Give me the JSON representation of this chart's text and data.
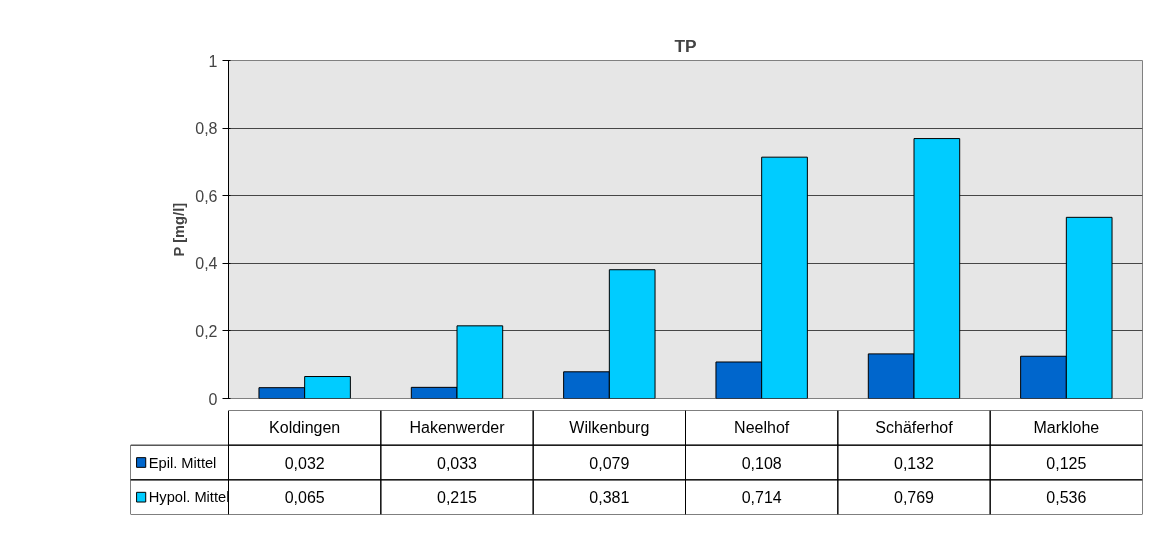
{
  "chart_data": {
    "type": "bar",
    "title": "TP",
    "ylabel": "P [mg/l]",
    "categories": [
      "Koldingen",
      "Hakenwerder",
      "Wilkenburg",
      "Neelhof",
      "Schäferhof",
      "Marklohe"
    ],
    "series": [
      {
        "name": "Epil. Mittel",
        "color": "#0066cc",
        "values": [
          0.032,
          0.033,
          0.079,
          0.108,
          0.132,
          0.125
        ],
        "value_labels": [
          "0,032",
          "0,033",
          "0,079",
          "0,108",
          "0,132",
          "0,125"
        ]
      },
      {
        "name": "Hypol. Mittel",
        "color": "#00ccff",
        "values": [
          0.065,
          0.215,
          0.381,
          0.714,
          0.769,
          0.536
        ],
        "value_labels": [
          "0,065",
          "0,215",
          "0,381",
          "0,714",
          "0,769",
          "0,536"
        ]
      }
    ],
    "ylim": [
      0,
      1
    ],
    "yticks": [
      0,
      {
        "value": 0.2,
        "label": "0,2"
      },
      {
        "value": 0.4,
        "label": "0,4"
      },
      {
        "value": 0.6,
        "label": "0,6"
      },
      {
        "value": 0.8,
        "label": "0,8"
      },
      1
    ],
    "grid": "y",
    "legend": "bottom"
  }
}
